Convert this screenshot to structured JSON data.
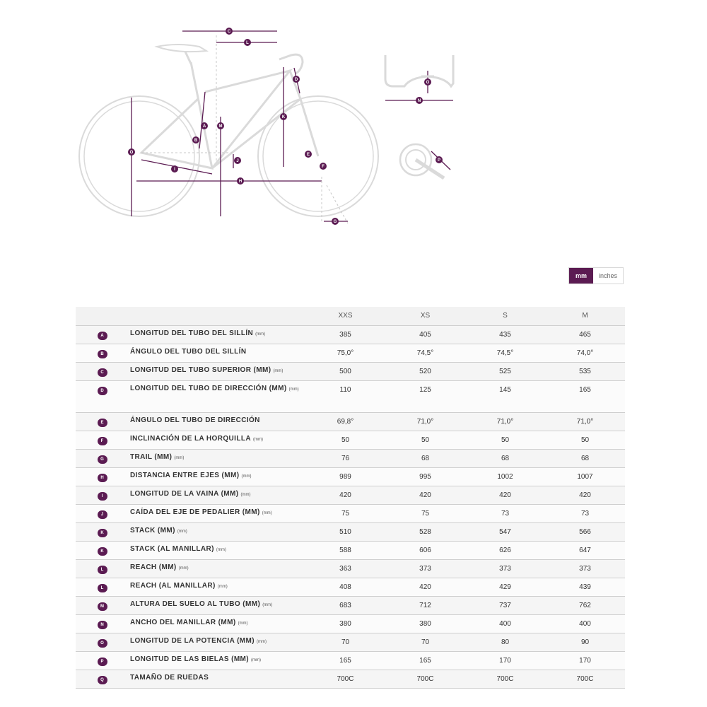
{
  "diagram": {
    "callouts": [
      "A",
      "B",
      "C",
      "D",
      "E",
      "F",
      "G",
      "H",
      "I",
      "J",
      "K",
      "L",
      "M",
      "N",
      "O",
      "P"
    ]
  },
  "units": {
    "mm": "mm",
    "inches": "inches",
    "selected": "mm"
  },
  "colors": {
    "accent": "#5b1b52",
    "line": "#d9d9d9"
  },
  "table": {
    "columns": [
      "XXS",
      "XS",
      "S",
      "M"
    ],
    "rows": [
      {
        "badge": "A",
        "label": "LONGITUD DEL TUBO DEL SILLÍN",
        "unit": "(mm)",
        "values": [
          "385",
          "405",
          "435",
          "465"
        ]
      },
      {
        "badge": "B",
        "label": "ÁNGULO DEL TUBO DEL SILLÍN",
        "unit": "",
        "values": [
          "75,0°",
          "74,5°",
          "74,5°",
          "74,0°"
        ]
      },
      {
        "badge": "C",
        "label": "LONGITUD DEL TUBO SUPERIOR (MM)",
        "unit": "(mm)",
        "values": [
          "500",
          "520",
          "525",
          "535"
        ]
      },
      {
        "badge": "D",
        "label": "LONGITUD DEL TUBO DE DIRECCIÓN (MM)",
        "unit": "(mm)",
        "values": [
          "110",
          "125",
          "145",
          "165"
        ]
      },
      {
        "badge": "E",
        "label": "ÁNGULO DEL TUBO DE DIRECCIÓN",
        "unit": "",
        "values": [
          "69,8°",
          "71,0°",
          "71,0°",
          "71,0°"
        ]
      },
      {
        "badge": "F",
        "label": "INCLINACIÓN DE LA HORQUILLA",
        "unit": "(mm)",
        "values": [
          "50",
          "50",
          "50",
          "50"
        ]
      },
      {
        "badge": "G",
        "label": "TRAIL (MM)",
        "unit": "(mm)",
        "values": [
          "76",
          "68",
          "68",
          "68"
        ]
      },
      {
        "badge": "H",
        "label": "DISTANCIA ENTRE EJES (MM)",
        "unit": "(mm)",
        "values": [
          "989",
          "995",
          "1002",
          "1007"
        ]
      },
      {
        "badge": "I",
        "label": "LONGITUD DE LA VAINA (MM)",
        "unit": "(mm)",
        "values": [
          "420",
          "420",
          "420",
          "420"
        ]
      },
      {
        "badge": "J",
        "label": "CAÍDA DEL EJE DE PEDALIER (MM)",
        "unit": "(mm)",
        "values": [
          "75",
          "75",
          "73",
          "73"
        ]
      },
      {
        "badge": "K",
        "label": "STACK (MM)",
        "unit": "(mm)",
        "values": [
          "510",
          "528",
          "547",
          "566"
        ]
      },
      {
        "badge": "K",
        "label": "STACK (AL MANILLAR)",
        "unit": "(mm)",
        "values": [
          "588",
          "606",
          "626",
          "647"
        ]
      },
      {
        "badge": "L",
        "label": "REACH (MM)",
        "unit": "(mm)",
        "values": [
          "363",
          "373",
          "373",
          "373"
        ]
      },
      {
        "badge": "L",
        "label": "REACH (AL MANILLAR)",
        "unit": "(mm)",
        "values": [
          "408",
          "420",
          "429",
          "439"
        ]
      },
      {
        "badge": "M",
        "label": "ALTURA DEL SUELO AL TUBO (MM)",
        "unit": "(mm)",
        "values": [
          "683",
          "712",
          "737",
          "762"
        ]
      },
      {
        "badge": "N",
        "label": "ANCHO DEL MANILLAR (MM)",
        "unit": "(mm)",
        "values": [
          "380",
          "380",
          "400",
          "400"
        ]
      },
      {
        "badge": "O",
        "label": "LONGITUD DE LA POTENCIA (MM)",
        "unit": "(mm)",
        "values": [
          "70",
          "70",
          "80",
          "90"
        ]
      },
      {
        "badge": "P",
        "label": "LONGITUD DE LAS BIELAS (MM)",
        "unit": "(mm)",
        "values": [
          "165",
          "165",
          "170",
          "170"
        ]
      },
      {
        "badge": "Q",
        "label": "TAMAÑO DE RUEDAS",
        "unit": "",
        "values": [
          "700C",
          "700C",
          "700C",
          "700C"
        ]
      }
    ]
  }
}
